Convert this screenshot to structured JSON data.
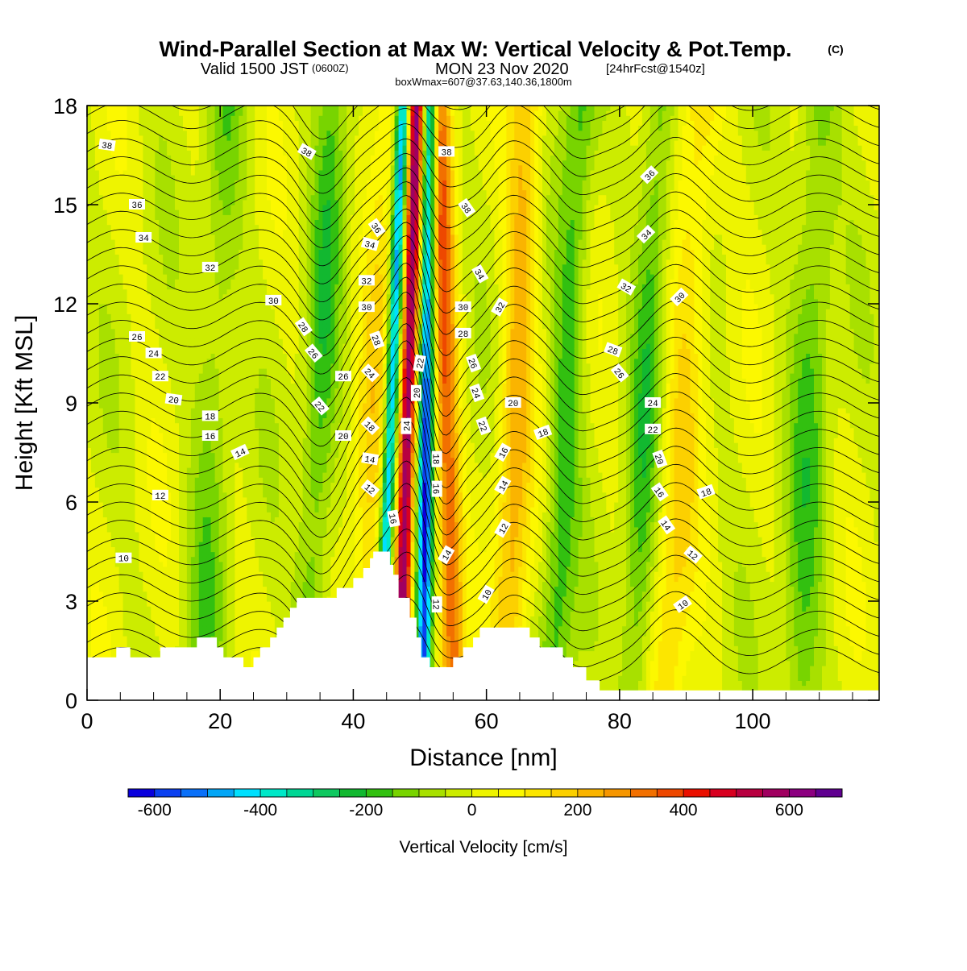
{
  "title": {
    "main": "Wind-Parallel Section at Max W: Vertical Velocity & Pot.Temp.",
    "copyright": "(C)",
    "valid_prefix": "Valid 1500 JST",
    "valid_z": "(0600Z)",
    "valid_date": "MON 23 Nov 2020",
    "forecast": "[24hrFcst@1540z]",
    "box": "boxWmax=607@37.63,140.36,1800m"
  },
  "chart_data": {
    "type": "heatmap",
    "xlabel": "Distance [nm]",
    "ylabel": "Height [Kft MSL]",
    "xlim": [
      0,
      119
    ],
    "ylim": [
      0,
      18
    ],
    "x_ticks": [
      0,
      20,
      40,
      60,
      80,
      100
    ],
    "y_ticks": [
      0,
      3,
      6,
      9,
      12,
      15,
      18
    ],
    "colorbar": {
      "label": "Vertical Velocity [cm/s]",
      "tick_labels": [
        "-600",
        "-400",
        "-200",
        "0",
        "200",
        "400",
        "600"
      ],
      "tick_values": [
        -600,
        -400,
        -200,
        0,
        200,
        400,
        600
      ],
      "levels_min": -650,
      "levels_step": 50,
      "colors": [
        "#0a00dd",
        "#0b40f0",
        "#0a70f8",
        "#04a6f6",
        "#00e0ff",
        "#00e8c8",
        "#00d694",
        "#0fc860",
        "#12b830",
        "#32c010",
        "#78d400",
        "#a8e000",
        "#ccec00",
        "#eef400",
        "#fcf800",
        "#fce600",
        "#fcd000",
        "#fab400",
        "#f69600",
        "#f27000",
        "#ee4800",
        "#ea1000",
        "#d80020",
        "#b80040",
        "#a00060",
        "#8c0080",
        "#600090"
      ]
    },
    "w_fields": [
      {
        "name": "main updraft",
        "x_at_0kft": 47,
        "x_at_18kft": 49.5,
        "w": 600,
        "width_nm": 1.2
      },
      {
        "name": "main downdraft west",
        "x_at_0kft": 44,
        "x_at_18kft": 47.5,
        "w": -500,
        "width_nm": 1.0
      },
      {
        "name": "main downdraft east",
        "x_at_0kft": 50.5,
        "x_at_18kft": 51.5,
        "w": -560,
        "width_nm": 1.1
      },
      {
        "name": "updraft east 1",
        "x_at_0kft": 55,
        "x_at_18kft": 53,
        "w": 340,
        "width_nm": 1.8
      },
      {
        "name": "updraft east 2",
        "x_at_0kft": 63,
        "x_at_18kft": 66,
        "w": 220,
        "width_nm": 2.5
      },
      {
        "name": "downdraft east 2",
        "x_at_0kft": 70,
        "x_at_18kft": 74,
        "w": -170,
        "width_nm": 2.5
      },
      {
        "name": "updraft east 3",
        "x_at_0kft": 87,
        "x_at_18kft": 92,
        "w": 150,
        "width_nm": 3.0
      },
      {
        "name": "downdraft east 3",
        "x_at_0kft": 82,
        "x_at_18kft": 86,
        "w": -160,
        "width_nm": 2.5
      },
      {
        "name": "downdraft far east",
        "x_at_0kft": 107,
        "x_at_18kft": 110,
        "w": -140,
        "width_nm": 3.0
      },
      {
        "name": "updraft west 1",
        "x_at_0kft": 41,
        "x_at_18kft": 45,
        "w": 140,
        "width_nm": 2.5
      },
      {
        "name": "downdraft west 1",
        "x_at_0kft": 33,
        "x_at_18kft": 37,
        "w": -160,
        "width_nm": 2.5
      },
      {
        "name": "downdraft west 2",
        "x_at_0kft": 17,
        "x_at_18kft": 21,
        "w": -110,
        "width_nm": 3.0
      }
    ],
    "terrain_kft": [
      [
        0,
        1.3
      ],
      [
        4.4,
        1.3
      ],
      [
        4.4,
        1.6
      ],
      [
        6.5,
        1.6
      ],
      [
        6.5,
        1.3
      ],
      [
        11,
        1.3
      ],
      [
        11,
        1.6
      ],
      [
        16.5,
        1.6
      ],
      [
        16.5,
        1.9
      ],
      [
        19.5,
        1.9
      ],
      [
        19.5,
        1.6
      ],
      [
        20.5,
        1.6
      ],
      [
        20.5,
        1.3
      ],
      [
        23.5,
        1.3
      ],
      [
        23.5,
        1.0
      ],
      [
        25,
        1.0
      ],
      [
        25,
        1.3
      ],
      [
        26,
        1.3
      ],
      [
        26,
        1.6
      ],
      [
        27.5,
        1.6
      ],
      [
        27.5,
        1.9
      ],
      [
        28.5,
        1.9
      ],
      [
        28.5,
        2.2
      ],
      [
        29.5,
        2.2
      ],
      [
        29.5,
        2.5
      ],
      [
        30.5,
        2.5
      ],
      [
        30.5,
        2.8
      ],
      [
        31.5,
        2.8
      ],
      [
        31.5,
        3.1
      ],
      [
        37.5,
        3.1
      ],
      [
        37.5,
        3.4
      ],
      [
        40,
        3.4
      ],
      [
        40,
        3.7
      ],
      [
        41.5,
        3.7
      ],
      [
        41.5,
        4.0
      ],
      [
        42.5,
        4.0
      ],
      [
        42.5,
        4.3
      ],
      [
        43,
        4.3
      ],
      [
        43,
        4.5
      ],
      [
        45.5,
        4.5
      ],
      [
        45.5,
        4.1
      ],
      [
        46,
        4.1
      ],
      [
        46,
        3.8
      ],
      [
        46.8,
        3.8
      ],
      [
        46.8,
        3.1
      ],
      [
        48.5,
        3.1
      ],
      [
        48.5,
        2.5
      ],
      [
        49.5,
        2.5
      ],
      [
        49.5,
        1.9
      ],
      [
        50.2,
        1.9
      ],
      [
        50.2,
        1.3
      ],
      [
        51.5,
        1.3
      ],
      [
        51.5,
        1.0
      ],
      [
        55,
        1.0
      ],
      [
        55,
        1.3
      ],
      [
        56.5,
        1.3
      ],
      [
        56.5,
        1.6
      ],
      [
        58,
        1.6
      ],
      [
        58,
        1.9
      ],
      [
        59,
        1.9
      ],
      [
        59,
        2.2
      ],
      [
        66.5,
        2.2
      ],
      [
        66.5,
        1.9
      ],
      [
        68,
        1.9
      ],
      [
        68,
        1.6
      ],
      [
        71.5,
        1.6
      ],
      [
        71.5,
        1.3
      ],
      [
        73,
        1.3
      ],
      [
        73,
        1.0
      ],
      [
        75,
        1.0
      ],
      [
        75,
        0.6
      ],
      [
        77,
        0.6
      ],
      [
        77,
        0.3
      ],
      [
        119,
        0.3
      ]
    ],
    "theta_levels_note": "potential temperature contour labels (approx. degC)",
    "contour_labels": [
      {
        "text": "38",
        "x": 3.0,
        "y": 16.8,
        "rot": 8
      },
      {
        "text": "36",
        "x": 7.5,
        "y": 15.0,
        "rot": 0
      },
      {
        "text": "34",
        "x": 8.5,
        "y": 14.0,
        "rot": 0
      },
      {
        "text": "32",
        "x": 18.5,
        "y": 13.1,
        "rot": 0
      },
      {
        "text": "30",
        "x": 28,
        "y": 12.1,
        "rot": 0
      },
      {
        "text": "26",
        "x": 7.5,
        "y": 11.0,
        "rot": 0
      },
      {
        "text": "24",
        "x": 10,
        "y": 10.5,
        "rot": 0
      },
      {
        "text": "22",
        "x": 11,
        "y": 9.8,
        "rot": 0
      },
      {
        "text": "20",
        "x": 13,
        "y": 9.1,
        "rot": 8
      },
      {
        "text": "18",
        "x": 18.5,
        "y": 8.6,
        "rot": 0
      },
      {
        "text": "16",
        "x": 18.5,
        "y": 8.0,
        "rot": 0
      },
      {
        "text": "14",
        "x": 23,
        "y": 7.5,
        "rot": -25
      },
      {
        "text": "12",
        "x": 11,
        "y": 6.2,
        "rot": 0
      },
      {
        "text": "10",
        "x": 5.5,
        "y": 4.3,
        "rot": 0
      },
      {
        "text": "38",
        "x": 33,
        "y": 16.6,
        "rot": 30
      },
      {
        "text": "28",
        "x": 32.5,
        "y": 11.3,
        "rot": 55
      },
      {
        "text": "26",
        "x": 34,
        "y": 10.5,
        "rot": 50
      },
      {
        "text": "26",
        "x": 38.5,
        "y": 9.8,
        "rot": 0
      },
      {
        "text": "22",
        "x": 35,
        "y": 8.9,
        "rot": 50
      },
      {
        "text": "20",
        "x": 38.5,
        "y": 8.0,
        "rot": 0
      },
      {
        "text": "36",
        "x": 43.5,
        "y": 14.3,
        "rot": 55
      },
      {
        "text": "34",
        "x": 42.5,
        "y": 13.8,
        "rot": 15
      },
      {
        "text": "32",
        "x": 42,
        "y": 12.7,
        "rot": 0
      },
      {
        "text": "30",
        "x": 42,
        "y": 11.9,
        "rot": 0
      },
      {
        "text": "28",
        "x": 43.5,
        "y": 10.9,
        "rot": 70
      },
      {
        "text": "24",
        "x": 42.5,
        "y": 9.9,
        "rot": 45
      },
      {
        "text": "18",
        "x": 42.5,
        "y": 8.3,
        "rot": 45
      },
      {
        "text": "14",
        "x": 42.5,
        "y": 7.3,
        "rot": 10
      },
      {
        "text": "12",
        "x": 42.5,
        "y": 6.4,
        "rot": 40
      },
      {
        "text": "16",
        "x": 46,
        "y": 5.5,
        "rot": 80
      },
      {
        "text": "22",
        "x": 50,
        "y": 10.2,
        "rot": -80
      },
      {
        "text": "20",
        "x": 49.5,
        "y": 9.3,
        "rot": -90
      },
      {
        "text": "24",
        "x": 48,
        "y": 8.3,
        "rot": -90
      },
      {
        "text": "18",
        "x": 52.5,
        "y": 7.3,
        "rot": 90
      },
      {
        "text": "16",
        "x": 52.5,
        "y": 6.4,
        "rot": 90
      },
      {
        "text": "14",
        "x": 54,
        "y": 4.4,
        "rot": -60
      },
      {
        "text": "12",
        "x": 52.5,
        "y": 2.9,
        "rot": 90
      },
      {
        "text": "38",
        "x": 54,
        "y": 16.6,
        "rot": 0
      },
      {
        "text": "38",
        "x": 57,
        "y": 14.9,
        "rot": 55
      },
      {
        "text": "34",
        "x": 59,
        "y": 12.9,
        "rot": 60
      },
      {
        "text": "32",
        "x": 62,
        "y": 11.9,
        "rot": -60
      },
      {
        "text": "30",
        "x": 56.5,
        "y": 11.9,
        "rot": 0
      },
      {
        "text": "28",
        "x": 56.5,
        "y": 11.1,
        "rot": 0
      },
      {
        "text": "26",
        "x": 58,
        "y": 10.2,
        "rot": 70
      },
      {
        "text": "24",
        "x": 58.5,
        "y": 9.3,
        "rot": 70
      },
      {
        "text": "22",
        "x": 59.5,
        "y": 8.3,
        "rot": 70
      },
      {
        "text": "16",
        "x": 62.5,
        "y": 7.5,
        "rot": -60
      },
      {
        "text": "14",
        "x": 62.5,
        "y": 6.5,
        "rot": -60
      },
      {
        "text": "12",
        "x": 62.5,
        "y": 5.2,
        "rot": -60
      },
      {
        "text": "10",
        "x": 60,
        "y": 3.2,
        "rot": -60
      },
      {
        "text": "20",
        "x": 64,
        "y": 9.0,
        "rot": 0
      },
      {
        "text": "18",
        "x": 68.5,
        "y": 8.1,
        "rot": -20
      },
      {
        "text": "36",
        "x": 84.5,
        "y": 15.9,
        "rot": -45
      },
      {
        "text": "34",
        "x": 84,
        "y": 14.1,
        "rot": -45
      },
      {
        "text": "32",
        "x": 81,
        "y": 12.5,
        "rot": 30
      },
      {
        "text": "30",
        "x": 89,
        "y": 12.2,
        "rot": -45
      },
      {
        "text": "28",
        "x": 79,
        "y": 10.6,
        "rot": 20
      },
      {
        "text": "26",
        "x": 80,
        "y": 9.9,
        "rot": 50
      },
      {
        "text": "24",
        "x": 85,
        "y": 9.0,
        "rot": 0
      },
      {
        "text": "22",
        "x": 85,
        "y": 8.2,
        "rot": 0
      },
      {
        "text": "20",
        "x": 86,
        "y": 7.3,
        "rot": 70
      },
      {
        "text": "16",
        "x": 86,
        "y": 6.3,
        "rot": 55
      },
      {
        "text": "14",
        "x": 87,
        "y": 5.3,
        "rot": 55
      },
      {
        "text": "12",
        "x": 91,
        "y": 4.4,
        "rot": 40
      },
      {
        "text": "10",
        "x": 89.5,
        "y": 2.9,
        "rot": -35
      },
      {
        "text": "18",
        "x": 93,
        "y": 6.3,
        "rot": -20
      }
    ]
  }
}
